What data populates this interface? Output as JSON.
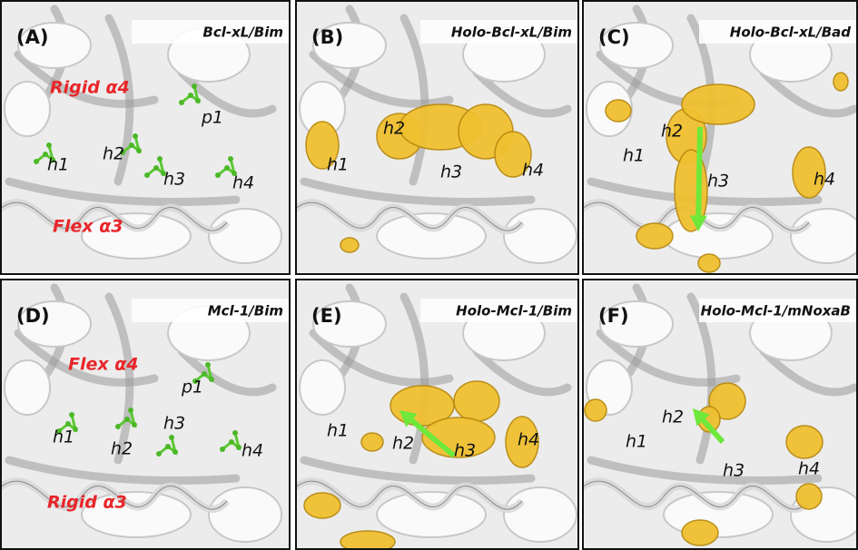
{
  "panels": [
    {
      "letter": "(A)",
      "title": "Bcl-xL/Bim",
      "region_labels": [
        "Rigid α4",
        "Flex α3"
      ],
      "site_labels": [
        "p1",
        "h1",
        "h2",
        "h3",
        "h4"
      ]
    },
    {
      "letter": "(B)",
      "title": "Holo-Bcl-xL/Bim",
      "site_labels": [
        "h2",
        "h1",
        "h3",
        "h4"
      ]
    },
    {
      "letter": "(C)",
      "title": "Holo-Bcl-xL/Bad",
      "site_labels": [
        "h2",
        "h1",
        "h3",
        "h4"
      ]
    },
    {
      "letter": "(D)",
      "title": "Mcl-1/Bim",
      "region_labels": [
        "Flex α4",
        "Rigid α3"
      ],
      "site_labels": [
        "p1",
        "h3",
        "h1",
        "h2",
        "h4"
      ]
    },
    {
      "letter": "(E)",
      "title": "Holo-Mcl-1/Bim",
      "site_labels": [
        "h1",
        "h2",
        "h3",
        "h4"
      ]
    },
    {
      "letter": "(F)",
      "title": "Holo-Mcl-1/mNoxaB",
      "site_labels": [
        "h2",
        "h1",
        "h3",
        "h4"
      ]
    }
  ]
}
